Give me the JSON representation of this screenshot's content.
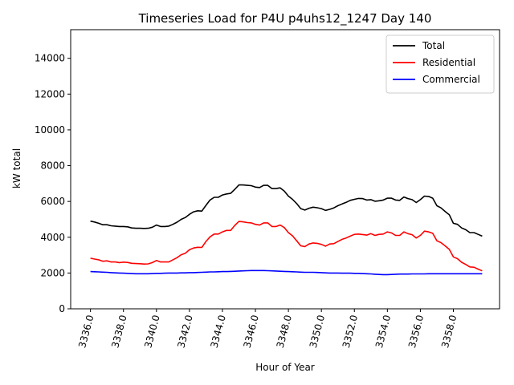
{
  "chart_data": {
    "type": "line",
    "title": "Timeseries Load for P4U p4uhs12_1247  Day 140",
    "xlabel": "Hour of Year",
    "ylabel": "kW total",
    "xlim": [
      3334.8,
      3360.8
    ],
    "ylim": [
      0,
      15600
    ],
    "x_ticks": [
      3336,
      3338,
      3340,
      3342,
      3344,
      3346,
      3348,
      3350,
      3352,
      3354,
      3356,
      3358
    ],
    "x_tick_labels": [
      "3336.0",
      "3338.0",
      "3340.0",
      "3342.0",
      "3344.0",
      "3346.0",
      "3348.0",
      "3350.0",
      "3352.0",
      "3354.0",
      "3356.0",
      "3358.0"
    ],
    "y_ticks": [
      0,
      2000,
      4000,
      6000,
      8000,
      10000,
      12000,
      14000
    ],
    "y_tick_labels": [
      "0",
      "2000",
      "4000",
      "6000",
      "8000",
      "10000",
      "12000",
      "14000"
    ],
    "legend_position": "top-right",
    "x_start": 3336,
    "x_step": 0.25,
    "series": [
      {
        "name": "Total",
        "color": "#000000",
        "values": [
          4900,
          4850,
          4780,
          4700,
          4700,
          4640,
          4620,
          4600,
          4600,
          4580,
          4520,
          4500,
          4500,
          4490,
          4500,
          4560,
          4680,
          4600,
          4600,
          4620,
          4720,
          4840,
          5000,
          5100,
          5280,
          5420,
          5480,
          5460,
          5780,
          6080,
          6230,
          6230,
          6360,
          6420,
          6450,
          6680,
          6920,
          6920,
          6900,
          6880,
          6800,
          6780,
          6900,
          6900,
          6720,
          6720,
          6760,
          6580,
          6300,
          6120,
          5880,
          5600,
          5520,
          5620,
          5680,
          5650,
          5600,
          5500,
          5560,
          5640,
          5760,
          5860,
          5950,
          6060,
          6120,
          6170,
          6160,
          6080,
          6100,
          6010,
          6040,
          6080,
          6180,
          6180,
          6080,
          6060,
          6250,
          6160,
          6100,
          5940,
          6100,
          6300,
          6280,
          6180,
          5760,
          5640,
          5440,
          5260,
          4780,
          4720,
          4520,
          4420,
          4260,
          4260,
          4160,
          4060
        ]
      },
      {
        "name": "Residential",
        "color": "#ff0000",
        "values": [
          2830,
          2780,
          2740,
          2660,
          2680,
          2620,
          2620,
          2580,
          2610,
          2590,
          2540,
          2530,
          2520,
          2500,
          2510,
          2580,
          2700,
          2620,
          2620,
          2620,
          2740,
          2860,
          3020,
          3100,
          3300,
          3400,
          3440,
          3430,
          3760,
          4020,
          4180,
          4180,
          4300,
          4380,
          4380,
          4660,
          4880,
          4860,
          4820,
          4800,
          4720,
          4680,
          4800,
          4800,
          4600,
          4600,
          4680,
          4540,
          4260,
          4080,
          3800,
          3520,
          3480,
          3620,
          3680,
          3660,
          3600,
          3500,
          3620,
          3640,
          3760,
          3880,
          3960,
          4060,
          4160,
          4180,
          4150,
          4120,
          4200,
          4100,
          4160,
          4180,
          4300,
          4240,
          4100,
          4100,
          4300,
          4200,
          4140,
          3960,
          4100,
          4340,
          4300,
          4220,
          3800,
          3700,
          3520,
          3320,
          2900,
          2800,
          2600,
          2480,
          2340,
          2320,
          2220,
          2120
        ]
      },
      {
        "name": "Commercial",
        "color": "#0000ff",
        "values": [
          2080,
          2070,
          2060,
          2050,
          2040,
          2020,
          2010,
          2000,
          1990,
          1980,
          1970,
          1960,
          1960,
          1960,
          1960,
          1970,
          1980,
          1980,
          1990,
          2000,
          2000,
          2000,
          2010,
          2010,
          2020,
          2020,
          2030,
          2040,
          2050,
          2060,
          2060,
          2070,
          2080,
          2080,
          2090,
          2100,
          2110,
          2120,
          2130,
          2140,
          2140,
          2140,
          2140,
          2130,
          2120,
          2110,
          2100,
          2090,
          2080,
          2070,
          2060,
          2050,
          2040,
          2040,
          2040,
          2030,
          2020,
          2010,
          2000,
          2000,
          2000,
          1990,
          1990,
          1990,
          1980,
          1980,
          1970,
          1960,
          1950,
          1930,
          1920,
          1910,
          1910,
          1920,
          1930,
          1940,
          1940,
          1940,
          1950,
          1950,
          1950,
          1950,
          1960,
          1960,
          1960,
          1960,
          1960,
          1960,
          1960,
          1960,
          1960,
          1960,
          1960,
          1960,
          1960,
          1960
        ]
      }
    ]
  }
}
